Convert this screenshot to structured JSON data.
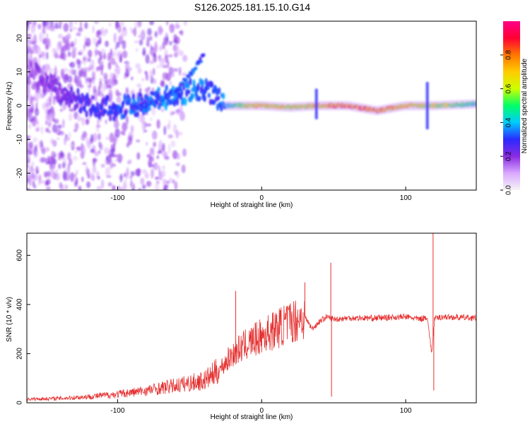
{
  "figure_title": "S126.2025.181.15.10.G14",
  "colors": {
    "snr_line": "#e53030",
    "frame": "#000000",
    "background": "#ffffff"
  },
  "chart_data": [
    {
      "type": "heatmap",
      "xlabel": "Height of straight line (km)",
      "ylabel": "Frequency (Hz)",
      "xlim": [
        -163,
        149
      ],
      "ylim": [
        -25,
        25
      ],
      "x_ticks": [
        -100,
        0,
        100
      ],
      "x_tick_labels": [
        "-100",
        "0",
        "100"
      ],
      "y_ticks": [
        -20,
        -10,
        0,
        10,
        20
      ],
      "y_tick_labels": [
        "-20",
        "-10",
        "0",
        "10",
        "20"
      ],
      "colorbar": {
        "label": "Normalized spectral amplitude",
        "range": [
          0,
          1
        ],
        "ticks": [
          0.0,
          0.2,
          0.4,
          0.6,
          0.8
        ],
        "tick_labels": [
          "0.0",
          "0.2",
          "0.4",
          "0.6",
          "0.8"
        ],
        "colormap": [
          "#f5f5f5",
          "#d9a8ff",
          "#8a2be2",
          "#2a2aff",
          "#00ccff",
          "#00ff66",
          "#ccff00",
          "#ffcc00",
          "#ff7700",
          "#ff0033",
          "#ff0088"
        ]
      },
      "ridge": [
        {
          "x": -160,
          "f": 10,
          "level": 0.18
        },
        {
          "x": -140,
          "f": 4,
          "level": 0.22
        },
        {
          "x": -120,
          "f": 0,
          "level": 0.28
        },
        {
          "x": -100,
          "f": -1,
          "level": 0.3
        },
        {
          "x": -80,
          "f": 1,
          "level": 0.33
        },
        {
          "x": -60,
          "f": 3,
          "level": 0.35
        },
        {
          "x": -45,
          "f": 5,
          "level": 0.33
        },
        {
          "x": -38,
          "f": 4.5,
          "level": 0.3
        },
        {
          "x": -30,
          "f": 2,
          "level": 0.3
        },
        {
          "x": -25,
          "f": 0,
          "level": 0.35
        },
        {
          "x": -15,
          "f": 0,
          "level": 0.55
        },
        {
          "x": 0,
          "f": 0,
          "level": 0.7
        },
        {
          "x": 20,
          "f": -0.5,
          "level": 0.65
        },
        {
          "x": 40,
          "f": 0,
          "level": 0.7
        },
        {
          "x": 60,
          "f": 0,
          "level": 0.85
        },
        {
          "x": 80,
          "f": -1.5,
          "level": 0.78
        },
        {
          "x": 100,
          "f": 0,
          "level": 0.72
        },
        {
          "x": 120,
          "f": 0,
          "level": 0.6
        },
        {
          "x": 149,
          "f": 0.5,
          "level": 0.45
        }
      ],
      "rising_branch": [
        {
          "x": -90,
          "f": -1
        },
        {
          "x": -75,
          "f": 1
        },
        {
          "x": -60,
          "f": 4
        },
        {
          "x": -50,
          "f": 9
        },
        {
          "x": -40,
          "f": 15
        }
      ],
      "spikes": [
        {
          "x": 38,
          "f_min": -4,
          "f_max": 5
        },
        {
          "x": 115,
          "f_min": -7,
          "f_max": 7
        }
      ]
    },
    {
      "type": "line",
      "xlabel": "Height of straight line (km)",
      "ylabel": "SNR (10 * v/v)",
      "xlim": [
        -163,
        149
      ],
      "ylim": [
        0,
        690
      ],
      "x_ticks": [
        -100,
        0,
        100
      ],
      "x_tick_labels": [
        "-100",
        "0",
        "100"
      ],
      "y_ticks": [
        0,
        200,
        400,
        600
      ],
      "y_tick_labels": [
        "0",
        "200",
        "400",
        "600"
      ],
      "series": [
        {
          "x": [
            -163,
            -140,
            -120,
            -100,
            -80,
            -60,
            -40,
            -30,
            -20,
            -10,
            0,
            10,
            20,
            25,
            30,
            35,
            40,
            45,
            50,
            60,
            80,
            100,
            110,
            115,
            118,
            120,
            125,
            149
          ],
          "y": [
            15,
            18,
            25,
            35,
            50,
            70,
            90,
            130,
            200,
            240,
            270,
            300,
            330,
            340,
            350,
            300,
            330,
            350,
            340,
            345,
            345,
            350,
            340,
            350,
            200,
            340,
            350,
            345
          ]
        }
      ],
      "spikes": [
        {
          "x": -18,
          "y_peak": 455
        },
        {
          "x": 30,
          "y_peak": 490
        },
        {
          "x": 48,
          "y_peak": 570
        },
        {
          "x": 48.5,
          "y_peak": 25
        },
        {
          "x": 119,
          "y_peak": 690
        },
        {
          "x": 119.5,
          "y_peak": 50
        }
      ]
    }
  ]
}
